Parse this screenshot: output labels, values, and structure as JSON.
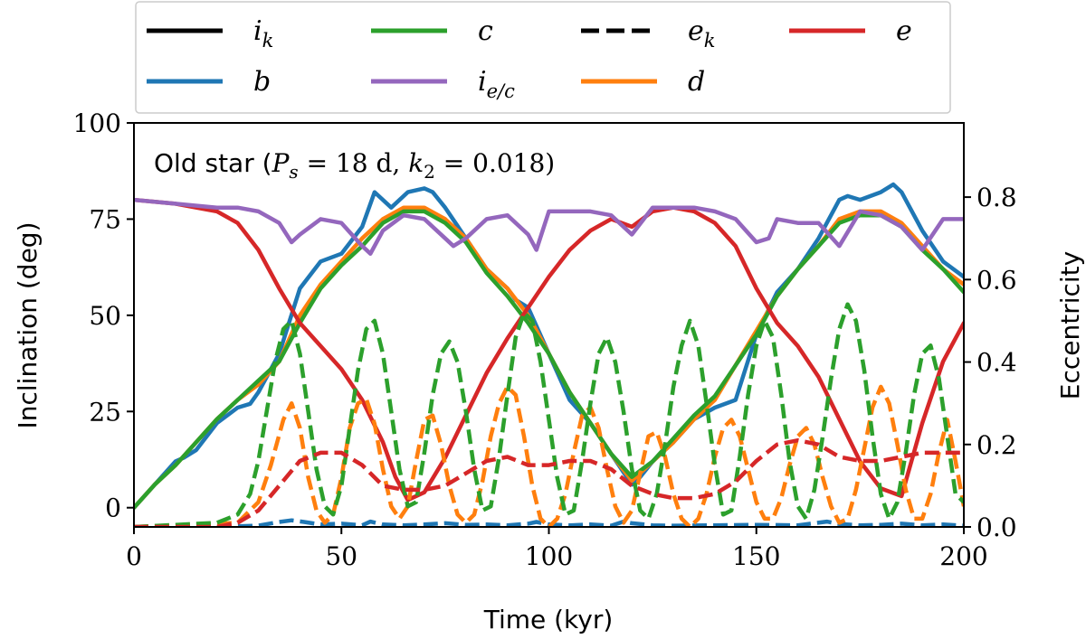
{
  "chart_data": {
    "type": "line",
    "title": "",
    "annotation": {
      "prefix": "Old star (",
      "p_symbol": "P",
      "p_sub": "s",
      "p_value": " = 18 d, ",
      "k_symbol": "k",
      "k_sub": "2",
      "k_value": " = 0.018)"
    },
    "xlabel": "Time (kyr)",
    "ylabel": "Inclination (deg)",
    "ylabel_right": "Eccentricity",
    "xlim": [
      0,
      200
    ],
    "ylim": [
      -5,
      100
    ],
    "ylim_right": [
      0.0,
      0.98
    ],
    "xticks": [
      "0",
      "50",
      "100",
      "150",
      "200"
    ],
    "yticks": [
      "0",
      "25",
      "50",
      "75",
      "100"
    ],
    "yticks_right": [
      "0.0",
      "0.2",
      "0.4",
      "0.6",
      "0.8"
    ],
    "legend": {
      "placement": "top",
      "entries": [
        {
          "key": "ik",
          "symbol": "i",
          "sub": "k",
          "style": "solid",
          "color": "#000000"
        },
        {
          "key": "b",
          "symbol": "b",
          "sub": "",
          "style": "solid",
          "color": "#1f77b4"
        },
        {
          "key": "c",
          "symbol": "c",
          "sub": "",
          "style": "solid",
          "color": "#2ca02c"
        },
        {
          "key": "iec",
          "symbol": "i",
          "sub": "e/c",
          "style": "solid",
          "color": "#9467bd"
        },
        {
          "key": "ek",
          "symbol": "e",
          "sub": "k",
          "style": "dashed",
          "color": "#000000"
        },
        {
          "key": "d",
          "symbol": "d",
          "sub": "",
          "style": "solid",
          "color": "#ff7f0e"
        },
        {
          "key": "e",
          "symbol": "e",
          "sub": "",
          "style": "solid",
          "color": "#d62728"
        }
      ]
    },
    "series": [
      {
        "name": "i_b",
        "axis": "left",
        "style": "solid",
        "color": "#1f77b4",
        "x": [
          0,
          5,
          10,
          12,
          15,
          20,
          25,
          28,
          30,
          35,
          40,
          45,
          50,
          55,
          58,
          62,
          66,
          70,
          72,
          75,
          80,
          85,
          90,
          92,
          95,
          100,
          105,
          110,
          115,
          120,
          122,
          125,
          130,
          135,
          140,
          145,
          150,
          155,
          160,
          165,
          170,
          172,
          175,
          180,
          183,
          185,
          190,
          195,
          200
        ],
        "y": [
          0,
          6,
          12,
          13,
          15,
          22,
          26,
          27,
          30,
          40,
          57,
          64,
          66,
          73,
          82,
          78,
          82,
          83,
          82,
          78,
          70,
          62,
          57,
          54,
          52,
          40,
          28,
          22,
          14,
          6,
          8,
          12,
          17,
          23,
          26,
          28,
          45,
          56,
          62,
          70,
          80,
          81,
          80,
          82,
          84,
          82,
          72,
          64,
          60
        ]
      },
      {
        "name": "i_d",
        "axis": "left",
        "style": "solid",
        "color": "#ff7f0e",
        "x": [
          0,
          5,
          10,
          15,
          20,
          25,
          30,
          35,
          40,
          45,
          50,
          55,
          60,
          65,
          70,
          75,
          80,
          85,
          90,
          95,
          100,
          105,
          110,
          115,
          120,
          125,
          130,
          135,
          140,
          145,
          150,
          155,
          160,
          165,
          170,
          175,
          180,
          185,
          190,
          195,
          200
        ],
        "y": [
          0,
          6,
          11,
          17,
          23,
          28,
          32,
          38,
          50,
          58,
          64,
          70,
          75,
          78,
          78,
          75,
          70,
          62,
          57,
          50,
          40,
          30,
          22,
          14,
          7,
          12,
          17,
          23,
          28,
          37,
          46,
          55,
          62,
          68,
          75,
          77,
          77,
          74,
          68,
          62,
          58
        ]
      },
      {
        "name": "i_c",
        "axis": "left",
        "style": "solid",
        "color": "#2ca02c",
        "x": [
          0,
          5,
          10,
          15,
          20,
          25,
          30,
          35,
          40,
          45,
          50,
          55,
          60,
          65,
          70,
          75,
          80,
          85,
          90,
          95,
          100,
          105,
          110,
          115,
          120,
          125,
          130,
          135,
          140,
          145,
          150,
          155,
          160,
          165,
          170,
          175,
          180,
          185,
          190,
          195,
          200
        ],
        "y": [
          0,
          6,
          11,
          17,
          23,
          28,
          33,
          38,
          48,
          57,
          63,
          68,
          74,
          77,
          77,
          74,
          69,
          61,
          55,
          48,
          40,
          30,
          22,
          14,
          8,
          12,
          18,
          24,
          29,
          37,
          45,
          55,
          62,
          68,
          74,
          76,
          76,
          73,
          67,
          62,
          56
        ]
      },
      {
        "name": "i_e",
        "axis": "left",
        "style": "solid",
        "color": "#d62728",
        "x": [
          0,
          10,
          20,
          25,
          30,
          35,
          40,
          45,
          50,
          55,
          60,
          63,
          66,
          70,
          75,
          80,
          85,
          90,
          95,
          100,
          105,
          110,
          115,
          120,
          125,
          130,
          135,
          140,
          145,
          150,
          155,
          160,
          165,
          170,
          175,
          180,
          185,
          190,
          195,
          200
        ],
        "y": [
          80,
          79,
          77,
          74,
          67,
          57,
          48,
          42,
          36,
          28,
          17,
          8,
          2,
          4,
          13,
          24,
          35,
          44,
          52,
          60,
          67,
          72,
          75,
          73,
          77,
          78,
          77,
          74,
          68,
          57,
          48,
          42,
          34,
          23,
          12,
          5,
          3,
          22,
          38,
          48
        ]
      },
      {
        "name": "i_ec",
        "axis": "left",
        "style": "solid",
        "color": "#9467bd",
        "x": [
          0,
          10,
          20,
          25,
          30,
          35,
          38,
          40,
          45,
          50,
          55,
          57,
          60,
          65,
          70,
          75,
          77,
          80,
          85,
          90,
          95,
          97,
          100,
          105,
          110,
          115,
          120,
          125,
          130,
          135,
          140,
          145,
          150,
          153,
          155,
          160,
          165,
          170,
          175,
          180,
          185,
          190,
          195,
          200
        ],
        "y": [
          80,
          79,
          78,
          78,
          77,
          74,
          69,
          71,
          75,
          74,
          68,
          66,
          72,
          76,
          75,
          70,
          68,
          70,
          75,
          76,
          71,
          67,
          77,
          77,
          77,
          76,
          71,
          78,
          78,
          78,
          77,
          75,
          69,
          70,
          75,
          74,
          74,
          68,
          77,
          76,
          73,
          67,
          75,
          75
        ]
      },
      {
        "name": "e_b",
        "axis": "right",
        "style": "dashed",
        "color": "#1f77b4",
        "x": [
          0,
          20,
          30,
          35,
          38,
          41,
          45,
          50,
          55,
          57,
          60,
          65,
          70,
          75,
          80,
          85,
          90,
          95,
          97,
          100,
          105,
          110,
          115,
          118,
          120,
          125,
          130,
          140,
          150,
          160,
          167,
          170,
          175,
          180,
          185,
          190,
          195,
          200
        ],
        "y": [
          0.0,
          0.0,
          0.003,
          0.012,
          0.016,
          0.012,
          0.006,
          0.008,
          0.004,
          0.013,
          0.006,
          0.004,
          0.006,
          0.009,
          0.005,
          0.006,
          0.004,
          0.008,
          0.012,
          0.006,
          0.004,
          0.006,
          0.003,
          0.013,
          0.009,
          0.004,
          0.003,
          0.004,
          0.005,
          0.004,
          0.013,
          0.007,
          0.004,
          0.005,
          0.008,
          0.004,
          0.006,
          0.003
        ]
      },
      {
        "name": "e_d",
        "axis": "right",
        "style": "dashed",
        "color": "#ff7f0e",
        "x": [
          0,
          25,
          30,
          33,
          36,
          38,
          40,
          42,
          44,
          46,
          48,
          50,
          52,
          54,
          56,
          58,
          60,
          62,
          64,
          66,
          68,
          70,
          72,
          74,
          76,
          78,
          80,
          82,
          84,
          86,
          88,
          90,
          92,
          94,
          96,
          98,
          100,
          102,
          104,
          106,
          108,
          110,
          112,
          114,
          116,
          118,
          120,
          122,
          124,
          126,
          128,
          130,
          132,
          134,
          136,
          138,
          140,
          142,
          144,
          146,
          148,
          150,
          152,
          154,
          156,
          158,
          160,
          162,
          164,
          166,
          168,
          170,
          172,
          174,
          176,
          178,
          180,
          182,
          184,
          186,
          188,
          190,
          192,
          194,
          196,
          198,
          200
        ],
        "y": [
          0.0,
          0.01,
          0.06,
          0.15,
          0.26,
          0.3,
          0.24,
          0.12,
          0.04,
          0.01,
          0.03,
          0.12,
          0.24,
          0.3,
          0.31,
          0.25,
          0.14,
          0.05,
          0.02,
          0.05,
          0.16,
          0.26,
          0.27,
          0.2,
          0.1,
          0.03,
          0.01,
          0.03,
          0.11,
          0.22,
          0.3,
          0.34,
          0.32,
          0.22,
          0.1,
          0.02,
          0.0,
          0.02,
          0.08,
          0.18,
          0.27,
          0.29,
          0.24,
          0.14,
          0.05,
          0.01,
          0.04,
          0.13,
          0.22,
          0.23,
          0.17,
          0.08,
          0.02,
          0.0,
          0.02,
          0.08,
          0.17,
          0.24,
          0.26,
          0.22,
          0.14,
          0.06,
          0.02,
          0.02,
          0.07,
          0.15,
          0.22,
          0.24,
          0.2,
          0.12,
          0.05,
          0.01,
          0.02,
          0.09,
          0.19,
          0.29,
          0.34,
          0.3,
          0.2,
          0.09,
          0.02,
          0.02,
          0.08,
          0.18,
          0.26,
          0.16,
          0.05
        ]
      },
      {
        "name": "e_c",
        "axis": "right",
        "style": "dashed",
        "color": "#2ca02c",
        "x": [
          0,
          20,
          25,
          28,
          30,
          32,
          34,
          36,
          38,
          40,
          42,
          44,
          46,
          48,
          50,
          52,
          54,
          56,
          58,
          60,
          62,
          64,
          66,
          68,
          70,
          72,
          74,
          76,
          78,
          80,
          82,
          84,
          86,
          88,
          90,
          92,
          94,
          96,
          98,
          100,
          102,
          104,
          106,
          108,
          110,
          112,
          114,
          116,
          118,
          120,
          122,
          124,
          126,
          128,
          130,
          132,
          134,
          136,
          138,
          140,
          142,
          144,
          146,
          148,
          150,
          152,
          154,
          156,
          158,
          160,
          162,
          164,
          166,
          168,
          170,
          172,
          174,
          176,
          178,
          180,
          182,
          184,
          186,
          188,
          190,
          192,
          194,
          196,
          198,
          200
        ],
        "y": [
          0.0,
          0.01,
          0.03,
          0.08,
          0.16,
          0.28,
          0.4,
          0.48,
          0.5,
          0.42,
          0.28,
          0.14,
          0.05,
          0.03,
          0.1,
          0.24,
          0.38,
          0.48,
          0.5,
          0.42,
          0.28,
          0.14,
          0.05,
          0.06,
          0.18,
          0.32,
          0.42,
          0.45,
          0.4,
          0.28,
          0.14,
          0.04,
          0.05,
          0.17,
          0.32,
          0.46,
          0.52,
          0.5,
          0.4,
          0.26,
          0.12,
          0.03,
          0.04,
          0.16,
          0.3,
          0.42,
          0.46,
          0.4,
          0.28,
          0.14,
          0.04,
          0.02,
          0.08,
          0.2,
          0.34,
          0.44,
          0.5,
          0.44,
          0.3,
          0.15,
          0.03,
          0.04,
          0.17,
          0.32,
          0.44,
          0.5,
          0.46,
          0.32,
          0.16,
          0.05,
          0.02,
          0.09,
          0.22,
          0.36,
          0.48,
          0.54,
          0.5,
          0.38,
          0.22,
          0.08,
          0.02,
          0.06,
          0.18,
          0.32,
          0.42,
          0.44,
          0.36,
          0.22,
          0.08,
          0.06
        ]
      },
      {
        "name": "e_e",
        "axis": "right",
        "style": "dashed",
        "color": "#d62728",
        "x": [
          0,
          20,
          25,
          30,
          35,
          40,
          45,
          50,
          55,
          60,
          65,
          70,
          75,
          80,
          85,
          90,
          95,
          100,
          105,
          110,
          115,
          120,
          125,
          130,
          135,
          140,
          145,
          150,
          155,
          160,
          165,
          170,
          175,
          180,
          185,
          190,
          195,
          200
        ],
        "y": [
          0.0,
          0.0,
          0.01,
          0.04,
          0.1,
          0.16,
          0.18,
          0.18,
          0.15,
          0.1,
          0.09,
          0.09,
          0.1,
          0.13,
          0.16,
          0.17,
          0.15,
          0.15,
          0.16,
          0.16,
          0.14,
          0.1,
          0.08,
          0.07,
          0.07,
          0.08,
          0.11,
          0.16,
          0.2,
          0.21,
          0.2,
          0.17,
          0.16,
          0.16,
          0.17,
          0.18,
          0.18,
          0.18
        ]
      }
    ]
  }
}
